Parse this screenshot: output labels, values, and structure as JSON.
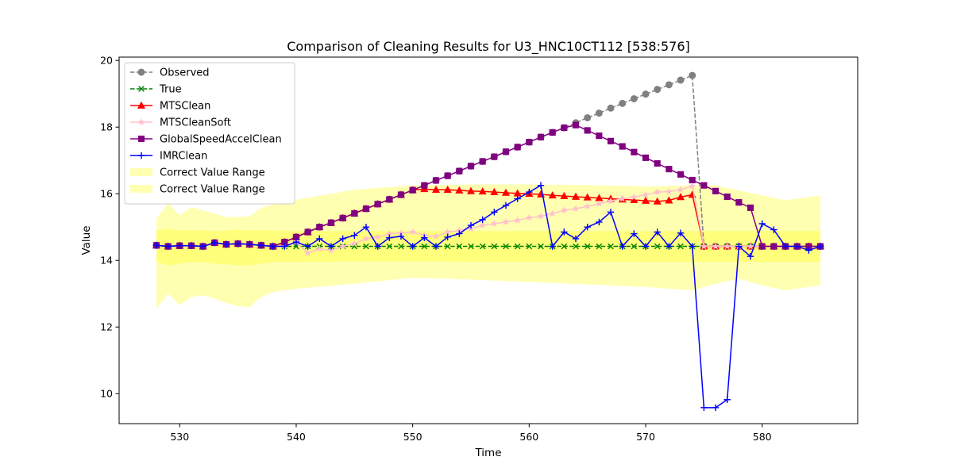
{
  "chart_data": {
    "type": "line",
    "title": "Comparison of Cleaning Results for U3_HNC10CT112 [538:576]",
    "xlabel": "Time",
    "ylabel": "Value",
    "xlim": [
      524.8,
      588.2
    ],
    "ylim": [
      9.1,
      20.1
    ],
    "xticks": [
      530,
      540,
      550,
      560,
      570,
      580
    ],
    "yticks": [
      10,
      12,
      14,
      16,
      18,
      20
    ],
    "grid": false,
    "legend_position": "upper-left",
    "x": [
      528,
      529,
      530,
      531,
      532,
      533,
      534,
      535,
      536,
      537,
      538,
      539,
      540,
      541,
      542,
      543,
      544,
      545,
      546,
      547,
      548,
      549,
      550,
      551,
      552,
      553,
      554,
      555,
      556,
      557,
      558,
      559,
      560,
      561,
      562,
      563,
      564,
      565,
      566,
      567,
      568,
      569,
      570,
      571,
      572,
      573,
      574,
      575,
      576,
      577,
      578,
      579,
      580,
      581,
      582,
      583,
      584,
      585
    ],
    "series": [
      {
        "name": "Observed",
        "color": "#808080",
        "linestyle": "dashed",
        "marker": "circle",
        "values": [
          14.45,
          14.42,
          14.44,
          14.44,
          14.42,
          14.53,
          14.48,
          14.5,
          14.48,
          14.45,
          14.42,
          14.55,
          14.7,
          14.85,
          15.0,
          15.13,
          15.27,
          15.41,
          15.55,
          15.69,
          15.83,
          15.97,
          16.11,
          16.25,
          16.4,
          16.54,
          16.68,
          16.83,
          16.97,
          17.11,
          17.26,
          17.4,
          17.55,
          17.7,
          17.84,
          17.98,
          18.13,
          18.28,
          18.42,
          18.57,
          18.71,
          18.85,
          18.99,
          19.13,
          19.27,
          19.41,
          19.55,
          14.42,
          14.42,
          14.42,
          14.42,
          14.42,
          14.42,
          14.42,
          14.42,
          14.42,
          14.42,
          14.42
        ]
      },
      {
        "name": "True",
        "color": "#008000",
        "linestyle": "dashed",
        "marker": "x",
        "values": [
          14.45,
          14.42,
          14.44,
          14.44,
          14.42,
          14.53,
          14.48,
          14.5,
          14.48,
          14.45,
          14.42,
          14.42,
          14.42,
          14.42,
          14.42,
          14.42,
          14.42,
          14.42,
          14.42,
          14.42,
          14.42,
          14.42,
          14.42,
          14.42,
          14.42,
          14.42,
          14.42,
          14.42,
          14.42,
          14.42,
          14.42,
          14.42,
          14.42,
          14.42,
          14.42,
          14.42,
          14.42,
          14.42,
          14.42,
          14.42,
          14.42,
          14.42,
          14.42,
          14.42,
          14.42,
          14.42,
          14.42,
          14.42,
          14.42,
          14.42,
          14.42,
          14.42,
          14.42,
          14.42,
          14.42,
          14.42,
          14.42,
          14.42
        ]
      },
      {
        "name": "MTSClean",
        "color": "#ff0000",
        "linestyle": "solid",
        "marker": "triangle",
        "values": [
          14.45,
          14.42,
          14.44,
          14.44,
          14.42,
          14.53,
          14.48,
          14.5,
          14.48,
          14.45,
          14.42,
          14.55,
          14.7,
          14.85,
          15.0,
          15.13,
          15.27,
          15.41,
          15.55,
          15.69,
          15.83,
          15.97,
          16.11,
          16.14,
          16.12,
          16.12,
          16.1,
          16.08,
          16.07,
          16.05,
          16.03,
          16.01,
          16.0,
          15.98,
          15.95,
          15.93,
          15.91,
          15.89,
          15.87,
          15.85,
          15.83,
          15.81,
          15.79,
          15.77,
          15.8,
          15.9,
          15.97,
          14.42,
          14.42,
          14.42,
          14.42,
          14.42,
          14.42,
          14.42,
          14.42,
          14.42,
          14.42,
          14.42
        ]
      },
      {
        "name": "MTSCleanSoft",
        "color": "#ffc0cb",
        "linestyle": "solid",
        "marker": "star",
        "values": [
          14.45,
          14.42,
          14.44,
          14.44,
          14.42,
          14.53,
          14.48,
          14.5,
          14.48,
          14.45,
          14.42,
          14.45,
          14.55,
          14.22,
          14.35,
          14.3,
          14.42,
          14.5,
          14.65,
          14.7,
          14.8,
          14.82,
          14.85,
          14.75,
          14.72,
          14.85,
          14.9,
          14.95,
          15.05,
          15.1,
          15.15,
          15.2,
          15.28,
          15.32,
          15.4,
          15.5,
          15.55,
          15.62,
          15.7,
          15.78,
          15.85,
          15.9,
          15.97,
          16.05,
          16.06,
          16.12,
          16.23,
          14.42,
          14.42,
          14.42,
          14.42,
          14.42,
          14.42,
          14.42,
          14.42,
          14.42,
          14.42,
          14.42
        ]
      },
      {
        "name": "GlobalSpeedAccelClean",
        "color": "#800080",
        "linestyle": "solid",
        "marker": "square",
        "values": [
          14.45,
          14.42,
          14.44,
          14.44,
          14.42,
          14.53,
          14.48,
          14.5,
          14.48,
          14.45,
          14.42,
          14.55,
          14.7,
          14.85,
          15.0,
          15.13,
          15.27,
          15.41,
          15.55,
          15.69,
          15.83,
          15.97,
          16.11,
          16.25,
          16.4,
          16.54,
          16.68,
          16.83,
          16.97,
          17.11,
          17.26,
          17.4,
          17.55,
          17.7,
          17.84,
          17.98,
          18.06,
          17.9,
          17.74,
          17.58,
          17.42,
          17.25,
          17.08,
          16.91,
          16.74,
          16.58,
          16.41,
          16.25,
          16.08,
          15.91,
          15.74,
          15.58,
          14.42,
          14.42,
          14.42,
          14.42,
          14.42,
          14.42
        ]
      },
      {
        "name": "IMRClean",
        "color": "#0000ff",
        "linestyle": "solid",
        "marker": "plus",
        "values": [
          14.45,
          14.42,
          14.44,
          14.44,
          14.42,
          14.53,
          14.48,
          14.5,
          14.48,
          14.45,
          14.42,
          14.42,
          14.55,
          14.42,
          14.65,
          14.42,
          14.65,
          14.75,
          15.0,
          14.42,
          14.68,
          14.72,
          14.42,
          14.68,
          14.42,
          14.7,
          14.8,
          15.05,
          15.22,
          15.45,
          15.65,
          15.85,
          16.05,
          16.25,
          14.42,
          14.85,
          14.65,
          15.0,
          15.15,
          15.45,
          14.42,
          14.8,
          14.42,
          14.85,
          14.42,
          14.82,
          14.42,
          9.58,
          9.58,
          9.82,
          14.42,
          14.12,
          15.1,
          14.92,
          14.42,
          14.42,
          14.3,
          14.42
        ]
      }
    ],
    "bands": [
      {
        "name": "Correct Value Range",
        "color": "#ffff00",
        "opacity": 0.3,
        "x": [
          528,
          529,
          530,
          531,
          532,
          533,
          534,
          535,
          536,
          537,
          538,
          540,
          545,
          550,
          555,
          560,
          565,
          570,
          574,
          576,
          578,
          580,
          582,
          585
        ],
        "lower": [
          12.55,
          13.0,
          12.65,
          12.9,
          12.95,
          12.85,
          12.72,
          12.62,
          12.6,
          12.9,
          13.05,
          13.15,
          13.3,
          13.48,
          13.42,
          13.35,
          13.28,
          13.2,
          13.1,
          13.3,
          13.45,
          13.25,
          13.1,
          13.25
        ],
        "upper": [
          15.25,
          15.72,
          15.35,
          15.6,
          15.5,
          15.4,
          15.3,
          15.3,
          15.32,
          15.58,
          15.68,
          15.82,
          16.12,
          16.25,
          16.28,
          16.28,
          16.26,
          16.22,
          16.25,
          16.25,
          16.1,
          15.95,
          15.8,
          15.95
        ]
      },
      {
        "name": "Correct Value Range",
        "color": "#ffff00",
        "opacity": 0.3,
        "x": [
          528,
          529,
          530,
          531,
          532,
          533,
          534,
          535,
          536,
          537,
          538,
          540,
          545,
          550,
          555,
          560,
          565,
          570,
          574,
          576,
          578,
          580,
          582,
          585
        ],
        "lower": [
          13.95,
          13.85,
          13.9,
          13.95,
          13.95,
          13.9,
          13.88,
          13.85,
          13.85,
          13.9,
          13.95,
          13.95,
          13.97,
          13.97,
          13.96,
          13.96,
          13.96,
          13.95,
          13.95,
          13.96,
          13.95,
          13.95,
          13.95,
          13.95
        ],
        "upper": [
          14.9,
          14.95,
          14.9,
          14.9,
          14.9,
          14.88,
          14.9,
          14.92,
          14.9,
          14.9,
          14.9,
          14.88,
          14.88,
          14.88,
          14.88,
          14.88,
          14.88,
          14.88,
          14.88,
          14.88,
          14.88,
          14.88,
          14.88,
          14.88
        ]
      }
    ]
  }
}
